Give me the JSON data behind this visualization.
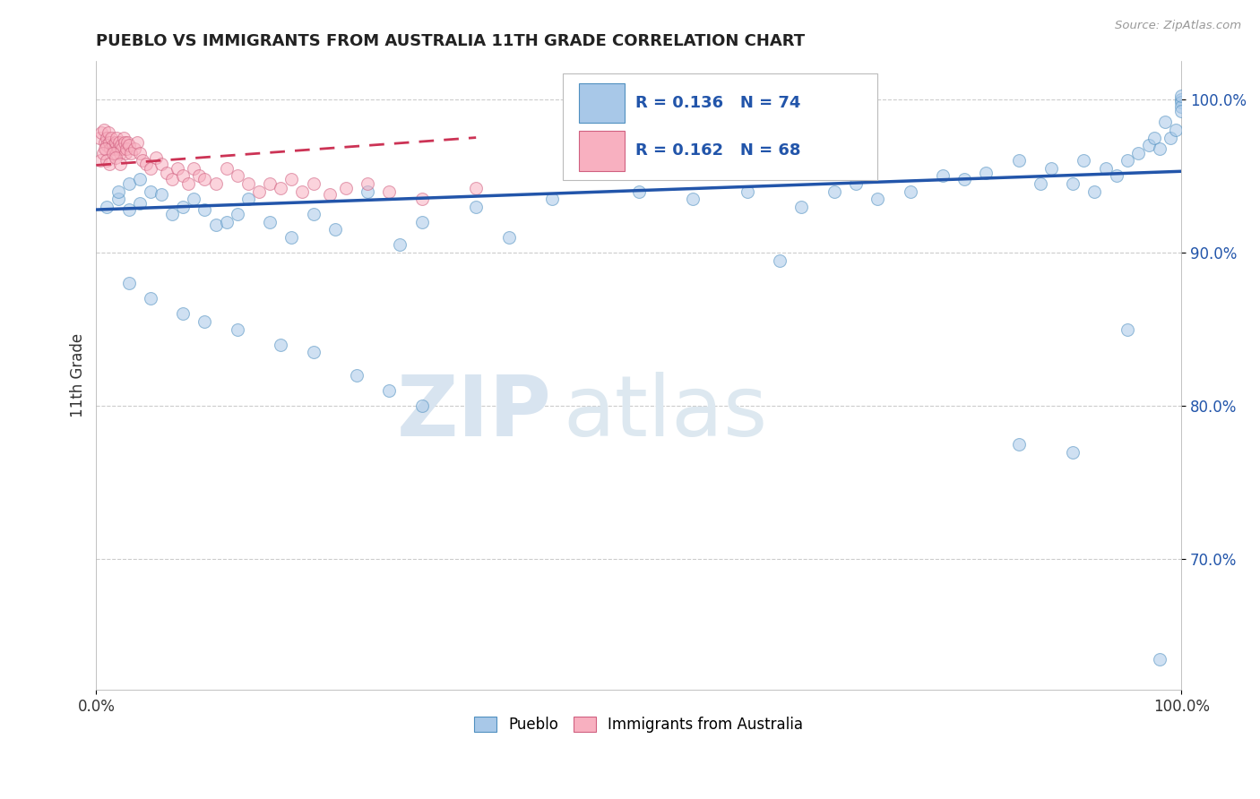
{
  "title": "PUEBLO VS IMMIGRANTS FROM AUSTRALIA 11TH GRADE CORRELATION CHART",
  "source": "Source: ZipAtlas.com",
  "ylabel": "11th Grade",
  "watermark_zip": "ZIP",
  "watermark_atlas": "atlas",
  "r_blue": 0.136,
  "n_blue": 74,
  "r_pink": 0.162,
  "n_pink": 68,
  "blue_color": "#a8c8e8",
  "blue_edge": "#5090c0",
  "pink_color": "#f8b0c0",
  "pink_edge": "#d06080",
  "trendline_blue": "#2255aa",
  "trendline_pink": "#cc3355",
  "blue_trend_x": [
    0.0,
    1.0
  ],
  "blue_trend_y": [
    0.928,
    0.953
  ],
  "pink_trend_x": [
    0.0,
    0.35
  ],
  "pink_trend_y": [
    0.957,
    0.975
  ],
  "xlim": [
    0.0,
    1.0
  ],
  "ylim": [
    0.615,
    1.025
  ],
  "yticks": [
    0.7,
    0.8,
    0.9,
    1.0
  ],
  "ytick_labels": [
    "70.0%",
    "80.0%",
    "90.0%",
    "100.0%"
  ],
  "grid_color": "#cccccc",
  "bg_color": "#ffffff",
  "text_color": "#333333",
  "title_color": "#222222",
  "marker_size": 100,
  "alpha": 0.55,
  "pueblo_x": [
    0.01,
    0.02,
    0.02,
    0.03,
    0.03,
    0.04,
    0.04,
    0.05,
    0.06,
    0.07,
    0.08,
    0.09,
    0.1,
    0.11,
    0.12,
    0.13,
    0.14,
    0.16,
    0.18,
    0.2,
    0.22,
    0.25,
    0.28,
    0.3,
    0.35,
    0.38,
    0.42,
    0.5,
    0.55,
    0.6,
    0.63,
    0.65,
    0.68,
    0.7,
    0.72,
    0.75,
    0.78,
    0.8,
    0.82,
    0.85,
    0.87,
    0.88,
    0.9,
    0.91,
    0.92,
    0.93,
    0.94,
    0.95,
    0.96,
    0.97,
    0.975,
    0.98,
    0.985,
    0.99,
    0.995,
    1.0,
    1.0,
    1.0,
    1.0,
    1.0,
    0.03,
    0.05,
    0.08,
    0.1,
    0.13,
    0.17,
    0.2,
    0.24,
    0.27,
    0.3,
    0.85,
    0.9,
    0.95,
    0.98
  ],
  "pueblo_y": [
    0.93,
    0.935,
    0.94,
    0.928,
    0.945,
    0.932,
    0.948,
    0.94,
    0.938,
    0.925,
    0.93,
    0.935,
    0.928,
    0.918,
    0.92,
    0.925,
    0.935,
    0.92,
    0.91,
    0.925,
    0.915,
    0.94,
    0.905,
    0.92,
    0.93,
    0.91,
    0.935,
    0.94,
    0.935,
    0.94,
    0.895,
    0.93,
    0.94,
    0.945,
    0.935,
    0.94,
    0.95,
    0.948,
    0.952,
    0.96,
    0.945,
    0.955,
    0.945,
    0.96,
    0.94,
    0.955,
    0.95,
    0.96,
    0.965,
    0.97,
    0.975,
    0.968,
    0.985,
    0.975,
    0.98,
    1.0,
    0.998,
    0.995,
    0.992,
    1.002,
    0.88,
    0.87,
    0.86,
    0.855,
    0.85,
    0.84,
    0.835,
    0.82,
    0.81,
    0.8,
    0.775,
    0.77,
    0.85,
    0.635
  ],
  "australia_x": [
    0.003,
    0.005,
    0.007,
    0.008,
    0.009,
    0.01,
    0.01,
    0.011,
    0.012,
    0.013,
    0.014,
    0.015,
    0.016,
    0.017,
    0.018,
    0.019,
    0.02,
    0.021,
    0.022,
    0.023,
    0.024,
    0.025,
    0.026,
    0.027,
    0.028,
    0.029,
    0.03,
    0.032,
    0.035,
    0.038,
    0.04,
    0.043,
    0.046,
    0.05,
    0.055,
    0.06,
    0.065,
    0.07,
    0.075,
    0.08,
    0.085,
    0.09,
    0.095,
    0.1,
    0.11,
    0.12,
    0.13,
    0.14,
    0.15,
    0.16,
    0.17,
    0.18,
    0.19,
    0.2,
    0.215,
    0.23,
    0.25,
    0.27,
    0.3,
    0.35,
    0.004,
    0.006,
    0.008,
    0.01,
    0.012,
    0.015,
    0.018,
    0.022
  ],
  "australia_y": [
    0.975,
    0.978,
    0.98,
    0.972,
    0.968,
    0.975,
    0.97,
    0.978,
    0.972,
    0.968,
    0.975,
    0.97,
    0.965,
    0.968,
    0.972,
    0.975,
    0.968,
    0.972,
    0.965,
    0.97,
    0.968,
    0.975,
    0.972,
    0.965,
    0.968,
    0.972,
    0.97,
    0.965,
    0.968,
    0.972,
    0.965,
    0.96,
    0.958,
    0.955,
    0.962,
    0.958,
    0.952,
    0.948,
    0.955,
    0.95,
    0.945,
    0.955,
    0.95,
    0.948,
    0.945,
    0.955,
    0.95,
    0.945,
    0.94,
    0.945,
    0.942,
    0.948,
    0.94,
    0.945,
    0.938,
    0.942,
    0.945,
    0.94,
    0.935,
    0.942,
    0.96,
    0.965,
    0.968,
    0.96,
    0.958,
    0.965,
    0.962,
    0.958
  ]
}
